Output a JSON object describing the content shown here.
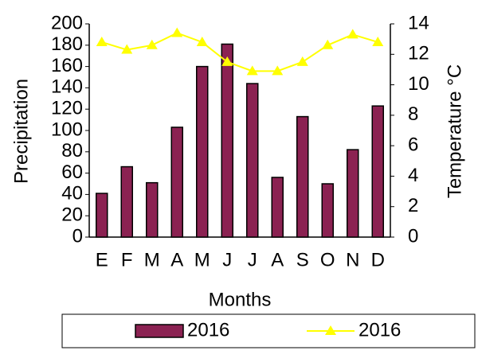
{
  "chart_data": {
    "type": "bar-line",
    "xlabel": "Months",
    "ylabel": "Precipitation",
    "y2label": "Temperature °C",
    "categories": [
      "E",
      "F",
      "M",
      "A",
      "M",
      "J",
      "J",
      "A",
      "S",
      "O",
      "N",
      "D"
    ],
    "series": [
      {
        "name": "2016",
        "type": "bar",
        "color": "#8b2252",
        "values": [
          41,
          66,
          51,
          103,
          160,
          181,
          144,
          56,
          113,
          50,
          82,
          123
        ]
      },
      {
        "name": "2016",
        "type": "line",
        "axis": "y2",
        "color": "#ffff00",
        "values": [
          12.8,
          12.3,
          12.6,
          13.4,
          12.8,
          11.5,
          10.9,
          10.9,
          11.5,
          12.6,
          13.3,
          12.8
        ]
      }
    ],
    "ylim": [
      0,
      200
    ],
    "yticks": [
      0,
      20,
      40,
      60,
      80,
      100,
      120,
      140,
      160,
      180,
      200
    ],
    "y2lim": [
      0,
      14
    ],
    "y2ticks": [
      0,
      2,
      4,
      6,
      8,
      10,
      12,
      14
    ],
    "grid": false
  }
}
